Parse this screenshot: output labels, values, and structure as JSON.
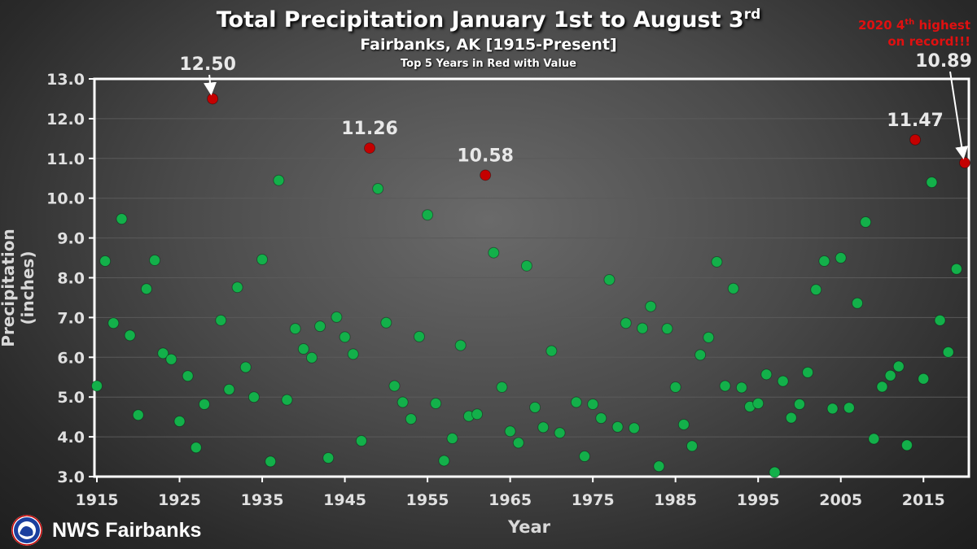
{
  "chart_data": {
    "type": "scatter",
    "title": "Total Precipitation January 1st to August 3",
    "title_sup": "rd",
    "subtitle": "Fairbanks,  AK [1915-Present]",
    "subsubtitle": "Top 5 Years in Red with Value",
    "xlabel": "Year",
    "ylabel": "Precipitation (inches)",
    "xlim": [
      1915,
      2020
    ],
    "ylim": [
      3.0,
      13.0
    ],
    "x_ticks": [
      1915,
      1925,
      1935,
      1945,
      1955,
      1965,
      1975,
      1985,
      1995,
      2005,
      2015
    ],
    "y_ticks": [
      "3.0",
      "4.0",
      "5.0",
      "6.0",
      "7.0",
      "8.0",
      "9.0",
      "10.0",
      "11.0",
      "12.0",
      "13.0"
    ],
    "colors": {
      "normal": "#13b04a",
      "top": "#c40000",
      "axis": "#ffffff"
    },
    "series": [
      {
        "name": "Other years",
        "points": [
          [
            1915,
            5.28
          ],
          [
            1916,
            8.42
          ],
          [
            1917,
            6.86
          ],
          [
            1918,
            9.48
          ],
          [
            1919,
            6.55
          ],
          [
            1920,
            4.55
          ],
          [
            1921,
            7.72
          ],
          [
            1922,
            8.44
          ],
          [
            1923,
            6.1
          ],
          [
            1924,
            5.95
          ],
          [
            1925,
            4.39
          ],
          [
            1926,
            5.53
          ],
          [
            1927,
            3.73
          ],
          [
            1928,
            4.82
          ],
          [
            1930,
            6.93
          ],
          [
            1931,
            5.19
          ],
          [
            1932,
            7.76
          ],
          [
            1933,
            5.75
          ],
          [
            1934,
            5.0
          ],
          [
            1935,
            8.46
          ],
          [
            1936,
            3.38
          ],
          [
            1937,
            10.45
          ],
          [
            1938,
            4.93
          ],
          [
            1939,
            6.72
          ],
          [
            1940,
            6.21
          ],
          [
            1941,
            5.99
          ],
          [
            1942,
            6.78
          ],
          [
            1943,
            3.47
          ],
          [
            1944,
            7.01
          ],
          [
            1945,
            6.51
          ],
          [
            1946,
            6.08
          ],
          [
            1947,
            3.9
          ],
          [
            1949,
            10.24
          ],
          [
            1950,
            6.87
          ],
          [
            1951,
            5.28
          ],
          [
            1952,
            4.87
          ],
          [
            1953,
            4.45
          ],
          [
            1954,
            6.52
          ],
          [
            1955,
            9.58
          ],
          [
            1956,
            4.84
          ],
          [
            1957,
            3.4
          ],
          [
            1958,
            3.96
          ],
          [
            1959,
            6.3
          ],
          [
            1960,
            4.52
          ],
          [
            1961,
            4.57
          ],
          [
            1963,
            8.63
          ],
          [
            1964,
            5.25
          ],
          [
            1965,
            4.14
          ],
          [
            1966,
            3.85
          ],
          [
            1967,
            8.3
          ],
          [
            1968,
            4.74
          ],
          [
            1969,
            4.24
          ],
          [
            1970,
            6.16
          ],
          [
            1971,
            4.1
          ],
          [
            1973,
            4.87
          ],
          [
            1974,
            3.51
          ],
          [
            1975,
            4.82
          ],
          [
            1976,
            4.47
          ],
          [
            1977,
            7.95
          ],
          [
            1978,
            4.25
          ],
          [
            1979,
            6.86
          ],
          [
            1980,
            4.22
          ],
          [
            1981,
            6.73
          ],
          [
            1982,
            7.28
          ],
          [
            1983,
            3.26
          ],
          [
            1984,
            6.72
          ],
          [
            1985,
            5.25
          ],
          [
            1986,
            4.31
          ],
          [
            1987,
            3.77
          ],
          [
            1988,
            6.06
          ],
          [
            1989,
            6.5
          ],
          [
            1990,
            8.4
          ],
          [
            1991,
            5.28
          ],
          [
            1992,
            7.73
          ],
          [
            1993,
            5.24
          ],
          [
            1994,
            4.76
          ],
          [
            1995,
            4.84
          ],
          [
            1996,
            5.57
          ],
          [
            1997,
            3.11
          ],
          [
            1998,
            5.4
          ],
          [
            1999,
            4.48
          ],
          [
            2000,
            4.82
          ],
          [
            2001,
            5.62
          ],
          [
            2002,
            7.7
          ],
          [
            2003,
            8.42
          ],
          [
            2004,
            4.71
          ],
          [
            2005,
            8.5
          ],
          [
            2006,
            4.73
          ],
          [
            2007,
            7.36
          ],
          [
            2008,
            9.4
          ],
          [
            2009,
            3.95
          ],
          [
            2010,
            5.26
          ],
          [
            2011,
            5.54
          ],
          [
            2012,
            5.77
          ],
          [
            2013,
            3.79
          ],
          [
            2015,
            5.46
          ],
          [
            2016,
            10.4
          ],
          [
            2017,
            6.93
          ],
          [
            2018,
            6.13
          ],
          [
            2019,
            8.22
          ]
        ]
      },
      {
        "name": "Top 5 years",
        "points": [
          [
            1929,
            12.5
          ],
          [
            1948,
            11.26
          ],
          [
            1962,
            10.58
          ],
          [
            2014,
            11.47
          ],
          [
            2020,
            10.89
          ]
        ]
      }
    ],
    "annotations": [
      {
        "year": 1929,
        "label": "12.50",
        "arrow": true
      },
      {
        "year": 1948,
        "label": "11.26",
        "arrow": false
      },
      {
        "year": 1962,
        "label": "10.58",
        "arrow": false
      },
      {
        "year": 2014,
        "label": "11.47",
        "arrow": false
      },
      {
        "year": 2020,
        "label": "10.89",
        "arrow": true
      }
    ],
    "note_line1": "2020 4",
    "note_sup": "th",
    "note_line1_end": " highest",
    "note_line2": "on record!!!"
  },
  "footer": {
    "org_name": "NWS Fairbanks",
    "logo_icon": "nws-logo-icon"
  }
}
